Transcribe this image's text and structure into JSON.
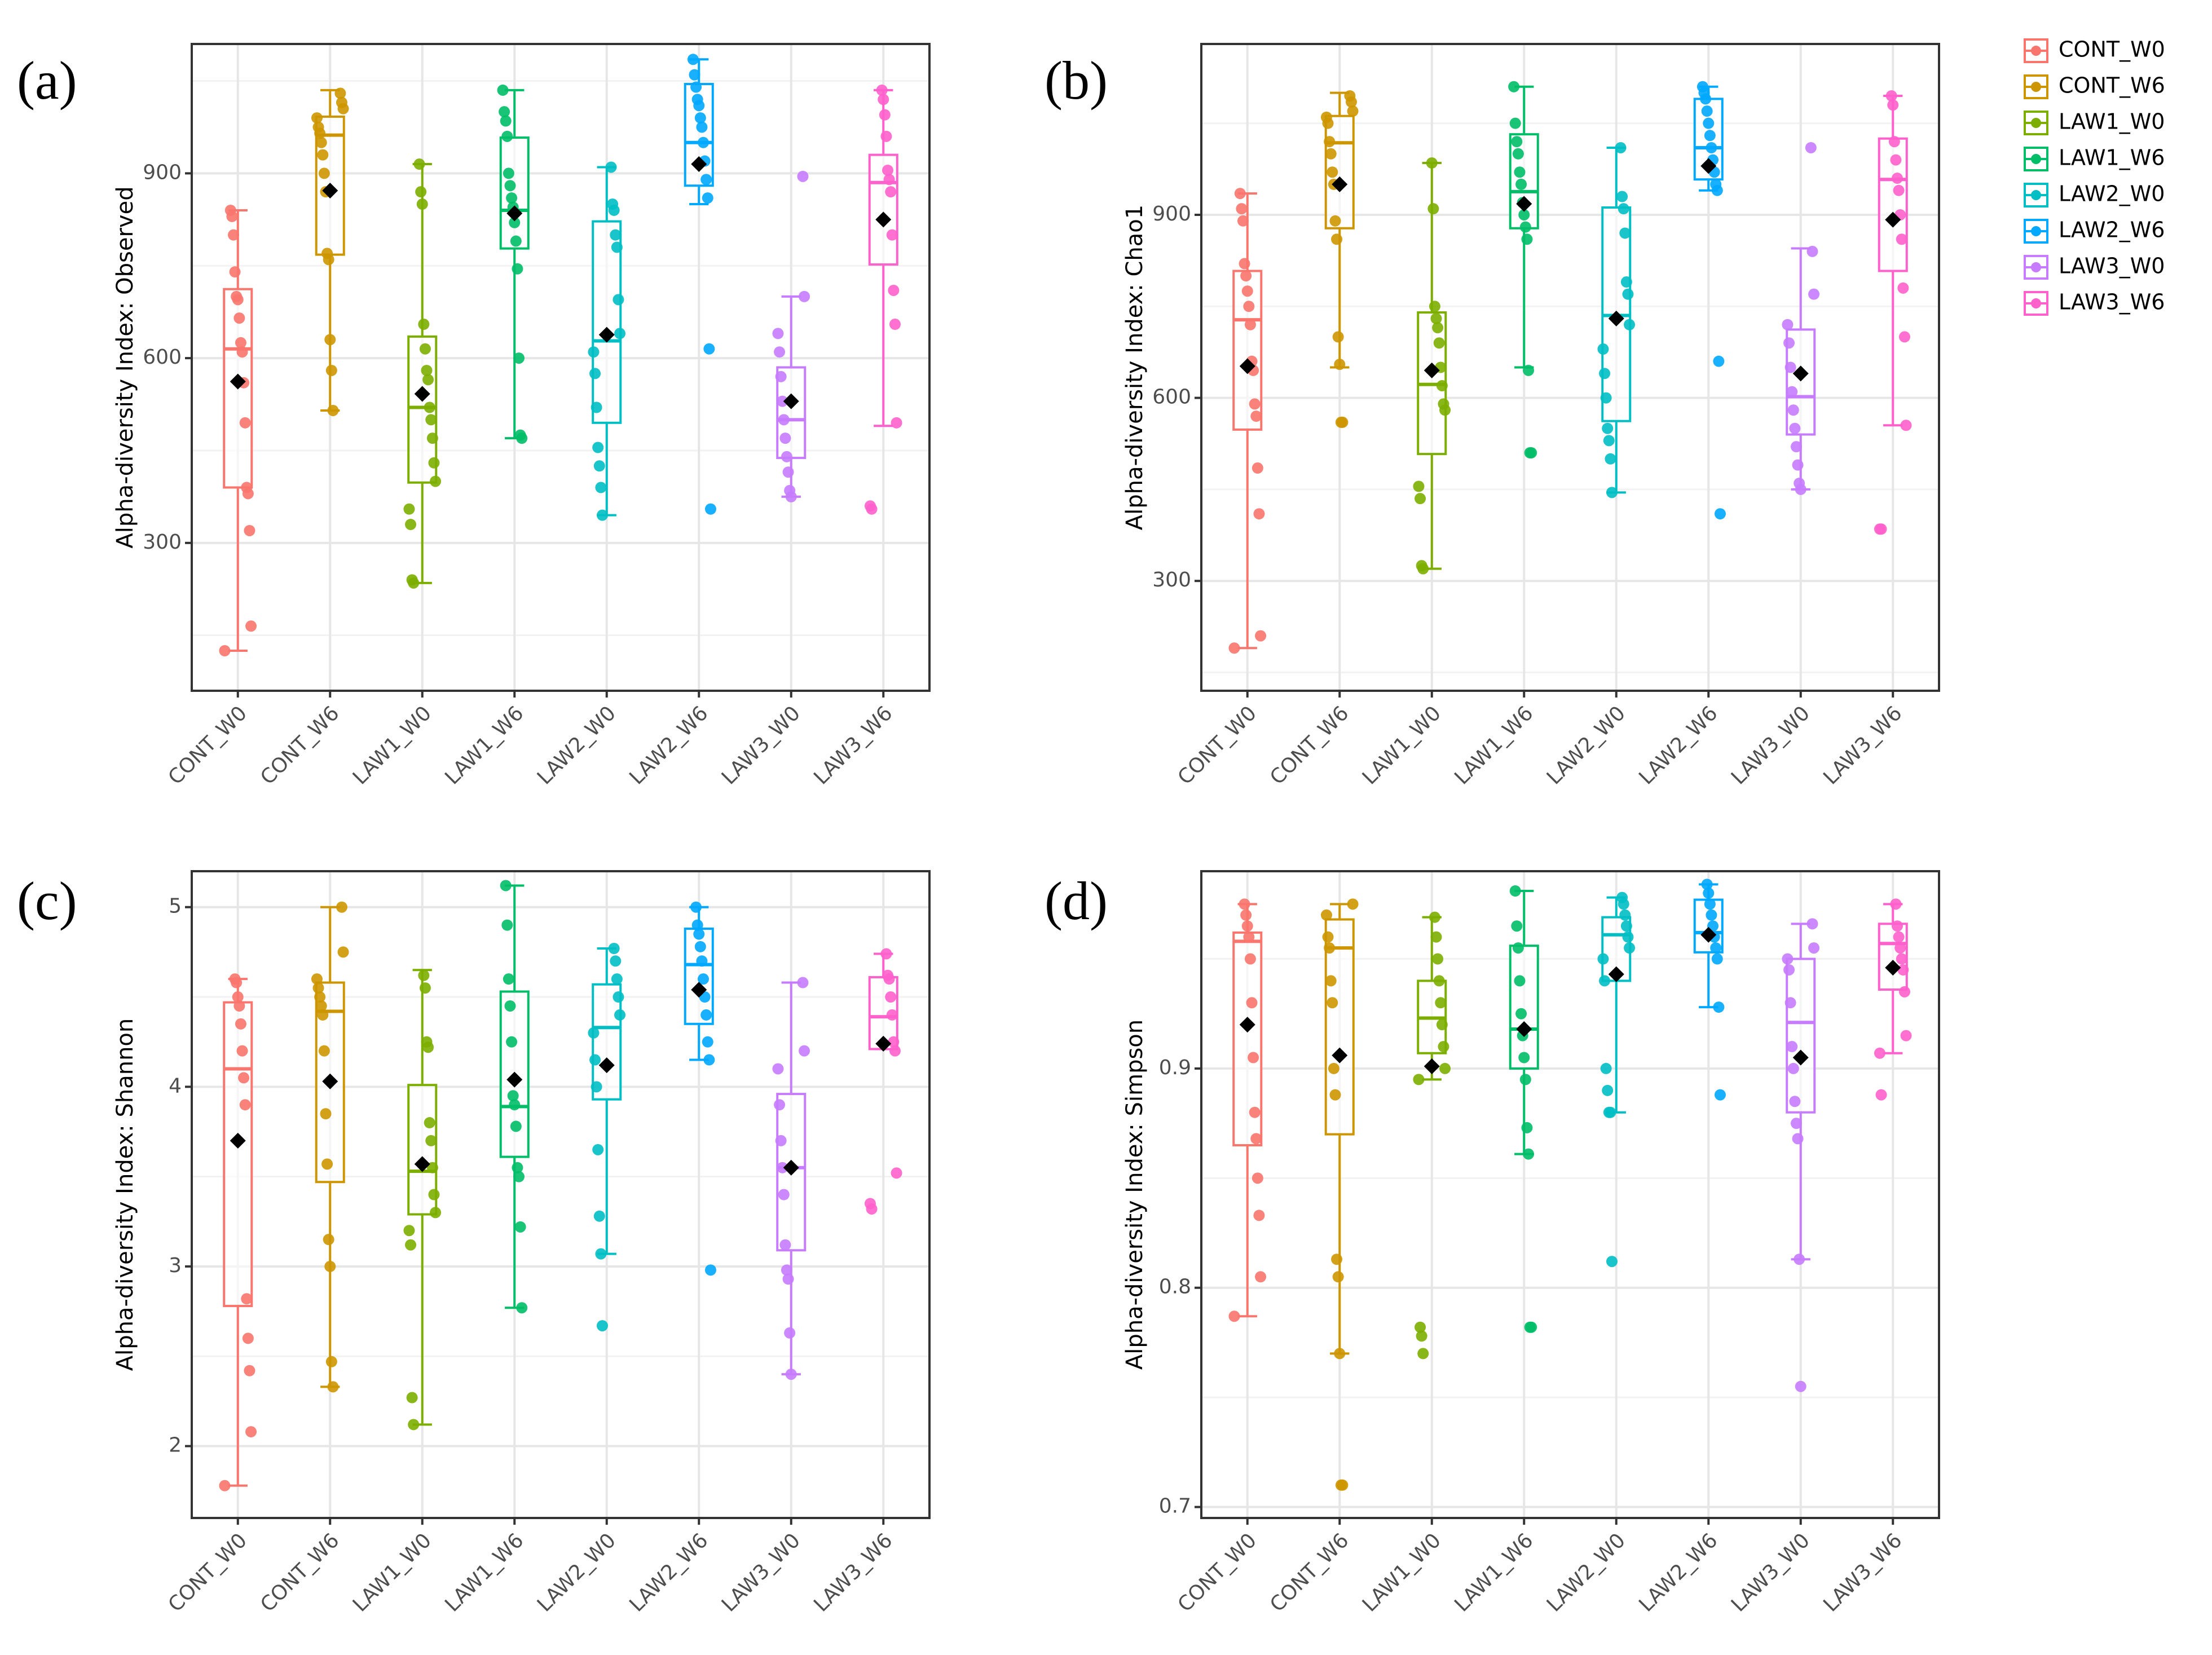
{
  "legend": {
    "position": "right",
    "entries": [
      {
        "label": "CONT_W0",
        "color": "#F8766D"
      },
      {
        "label": "CONT_W6",
        "color": "#CD9600"
      },
      {
        "label": "LAW1_W0",
        "color": "#7CAE00"
      },
      {
        "label": "LAW1_W6",
        "color": "#00BE67"
      },
      {
        "label": "LAW2_W0",
        "color": "#00BFC4"
      },
      {
        "label": "LAW2_W6",
        "color": "#00A9FF"
      },
      {
        "label": "LAW3_W0",
        "color": "#C77CFF"
      },
      {
        "label": "LAW3_W6",
        "color": "#FF61CC"
      }
    ]
  },
  "chart_data": [
    {
      "panel": "(a)",
      "type": "boxplot",
      "ylabel": "Alpha-diversity Index: Observed",
      "ylim": [
        60,
        1110
      ],
      "yticks": [
        300,
        600,
        900
      ],
      "ytick_labels": [
        "300",
        "600",
        "900"
      ],
      "yminor": [
        150,
        450,
        750,
        1050
      ],
      "categories": [
        "CONT_W0",
        "CONT_W6",
        "LAW1_W0",
        "LAW1_W6",
        "LAW2_W0",
        "LAW2_W6",
        "LAW3_W0",
        "LAW3_W6"
      ],
      "boxes": [
        {
          "lo": 125,
          "q1": 390,
          "median": 615,
          "q3": 712,
          "hi": 840,
          "mean": 562
        },
        {
          "lo": 515,
          "q1": 768,
          "median": 962,
          "q3": 992,
          "hi": 1035,
          "mean": 872
        },
        {
          "lo": 235,
          "q1": 398,
          "median": 520,
          "q3": 635,
          "hi": 915,
          "mean": 542
        },
        {
          "lo": 470,
          "q1": 778,
          "median": 840,
          "q3": 958,
          "hi": 1035,
          "mean": 835
        },
        {
          "lo": 345,
          "q1": 495,
          "median": 628,
          "q3": 822,
          "hi": 910,
          "mean": 638
        },
        {
          "lo": 850,
          "q1": 880,
          "median": 950,
          "q3": 1045,
          "hi": 1085,
          "mean": 915
        },
        {
          "lo": 375,
          "q1": 438,
          "median": 500,
          "q3": 585,
          "hi": 700,
          "mean": 530
        },
        {
          "lo": 490,
          "q1": 752,
          "median": 885,
          "q3": 930,
          "hi": 1035,
          "mean": 825
        }
      ],
      "points": [
        [
          125,
          165,
          320,
          380,
          390,
          495,
          560,
          610,
          625,
          665,
          695,
          700,
          740,
          800,
          830,
          840
        ],
        [
          515,
          580,
          630,
          760,
          770,
          870,
          900,
          930,
          950,
          965,
          975,
          990,
          1005,
          1015,
          1030
        ],
        [
          235,
          240,
          330,
          355,
          400,
          430,
          470,
          500,
          520,
          565,
          580,
          615,
          655,
          850,
          870,
          915
        ],
        [
          470,
          475,
          600,
          745,
          790,
          820,
          845,
          860,
          880,
          900,
          960,
          985,
          1000,
          1035
        ],
        [
          345,
          390,
          425,
          455,
          520,
          575,
          610,
          640,
          695,
          780,
          800,
          840,
          850,
          910
        ],
        [
          355,
          615,
          860,
          890,
          920,
          950,
          975,
          990,
          1010,
          1020,
          1040,
          1060,
          1085
        ],
        [
          375,
          385,
          415,
          440,
          470,
          500,
          530,
          570,
          610,
          640,
          700,
          895
        ],
        [
          355,
          360,
          495,
          655,
          710,
          800,
          870,
          890,
          905,
          960,
          995,
          1020,
          1035
        ]
      ]
    },
    {
      "panel": "(b)",
      "type": "boxplot",
      "ylabel": "Alpha-diversity Index: Chao1",
      "ylim": [
        120,
        1180
      ],
      "yticks": [
        300,
        600,
        900
      ],
      "ytick_labels": [
        "300",
        "600",
        "900"
      ],
      "yminor": [
        150,
        450,
        750,
        1050
      ],
      "categories": [
        "CONT_W0",
        "CONT_W6",
        "LAW1_W0",
        "LAW1_W6",
        "LAW2_W0",
        "LAW2_W6",
        "LAW3_W0",
        "LAW3_W6"
      ],
      "boxes": [
        {
          "lo": 190,
          "q1": 548,
          "median": 728,
          "q3": 808,
          "hi": 935,
          "mean": 652
        },
        {
          "lo": 650,
          "q1": 878,
          "median": 1018,
          "q3": 1062,
          "hi": 1100,
          "mean": 950
        },
        {
          "lo": 320,
          "q1": 508,
          "median": 622,
          "q3": 740,
          "hi": 985,
          "mean": 645
        },
        {
          "lo": 650,
          "q1": 878,
          "median": 938,
          "q3": 1032,
          "hi": 1110,
          "mean": 918
        },
        {
          "lo": 445,
          "q1": 562,
          "median": 735,
          "q3": 912,
          "hi": 1010,
          "mean": 730
        },
        {
          "lo": 940,
          "q1": 958,
          "median": 1010,
          "q3": 1090,
          "hi": 1110,
          "mean": 980
        },
        {
          "lo": 450,
          "q1": 540,
          "median": 602,
          "q3": 712,
          "hi": 845,
          "mean": 640
        },
        {
          "lo": 555,
          "q1": 808,
          "median": 958,
          "q3": 1025,
          "hi": 1095,
          "mean": 892
        }
      ],
      "points": [
        [
          190,
          210,
          410,
          485,
          570,
          590,
          645,
          660,
          720,
          750,
          775,
          800,
          820,
          890,
          910,
          935
        ],
        [
          560,
          560,
          655,
          700,
          860,
          890,
          950,
          970,
          1000,
          1020,
          1050,
          1060,
          1070,
          1085,
          1095
        ],
        [
          320,
          325,
          435,
          455,
          580,
          590,
          620,
          650,
          690,
          715,
          730,
          750,
          910,
          985
        ],
        [
          510,
          510,
          645,
          860,
          880,
          900,
          920,
          950,
          970,
          1000,
          1020,
          1050,
          1110
        ],
        [
          445,
          500,
          530,
          550,
          600,
          640,
          680,
          720,
          770,
          790,
          870,
          910,
          930,
          1010
        ],
        [
          410,
          660,
          940,
          950,
          970,
          990,
          1010,
          1030,
          1050,
          1070,
          1090,
          1100,
          1110
        ],
        [
          450,
          460,
          490,
          520,
          550,
          580,
          610,
          650,
          690,
          720,
          770,
          840,
          1010
        ],
        [
          385,
          385,
          555,
          700,
          780,
          860,
          900,
          940,
          960,
          990,
          1020,
          1080,
          1095
        ]
      ]
    },
    {
      "panel": "(c)",
      "type": "boxplot",
      "ylabel": "Alpha-diversity Index: Shannon",
      "ylim": [
        1.6,
        5.2
      ],
      "yticks": [
        2,
        3,
        4,
        5
      ],
      "ytick_labels": [
        "2",
        "3",
        "4",
        "5"
      ],
      "yminor": [
        2.5,
        3.5,
        4.5
      ],
      "categories": [
        "CONT_W0",
        "CONT_W6",
        "LAW1_W0",
        "LAW1_W6",
        "LAW2_W0",
        "LAW2_W6",
        "LAW3_W0",
        "LAW3_W6"
      ],
      "boxes": [
        {
          "lo": 1.78,
          "q1": 2.78,
          "median": 4.1,
          "q3": 4.47,
          "hi": 4.6,
          "mean": 3.7
        },
        {
          "lo": 2.33,
          "q1": 3.47,
          "median": 4.42,
          "q3": 4.58,
          "hi": 5.0,
          "mean": 4.03
        },
        {
          "lo": 2.12,
          "q1": 3.29,
          "median": 3.53,
          "q3": 4.01,
          "hi": 4.65,
          "mean": 3.57
        },
        {
          "lo": 2.77,
          "q1": 3.61,
          "median": 3.89,
          "q3": 4.53,
          "hi": 5.12,
          "mean": 4.04
        },
        {
          "lo": 3.07,
          "q1": 3.93,
          "median": 4.33,
          "q3": 4.57,
          "hi": 4.77,
          "mean": 4.12
        },
        {
          "lo": 4.15,
          "q1": 4.35,
          "median": 4.68,
          "q3": 4.88,
          "hi": 5.0,
          "mean": 4.54
        },
        {
          "lo": 2.4,
          "q1": 3.09,
          "median": 3.55,
          "q3": 3.96,
          "hi": 4.58,
          "mean": 3.55
        },
        {
          "lo": 4.21,
          "q1": 4.21,
          "median": 4.39,
          "q3": 4.61,
          "hi": 4.74,
          "mean": 4.24
        }
      ],
      "points": [
        [
          1.78,
          2.08,
          2.42,
          2.6,
          2.82,
          3.9,
          4.05,
          4.2,
          4.35,
          4.45,
          4.5,
          4.58,
          4.6
        ],
        [
          2.33,
          2.47,
          3.0,
          3.15,
          3.57,
          3.85,
          4.2,
          4.4,
          4.45,
          4.5,
          4.55,
          4.6,
          4.75,
          5.0
        ],
        [
          2.12,
          2.27,
          3.12,
          3.2,
          3.3,
          3.4,
          3.55,
          3.7,
          3.8,
          4.22,
          4.25,
          4.55,
          4.62
        ],
        [
          2.77,
          3.22,
          3.5,
          3.55,
          3.78,
          3.9,
          3.95,
          4.25,
          4.45,
          4.6,
          4.9,
          5.12
        ],
        [
          2.67,
          3.07,
          3.28,
          3.65,
          4.0,
          4.15,
          4.3,
          4.4,
          4.5,
          4.6,
          4.7,
          4.77
        ],
        [
          2.98,
          4.15,
          4.25,
          4.4,
          4.5,
          4.6,
          4.7,
          4.78,
          4.85,
          4.9,
          5.0
        ],
        [
          2.4,
          2.63,
          2.93,
          2.98,
          3.12,
          3.4,
          3.55,
          3.7,
          3.9,
          4.1,
          4.2,
          4.58
        ],
        [
          3.32,
          3.35,
          3.52,
          4.2,
          4.25,
          4.4,
          4.5,
          4.6,
          4.62,
          4.74
        ]
      ]
    },
    {
      "panel": "(d)",
      "type": "boxplot",
      "ylabel": "Alpha-diversity Index: Simpson",
      "ylim": [
        0.695,
        0.99
      ],
      "yticks": [
        0.7,
        0.8,
        0.9
      ],
      "ytick_labels": [
        "0.7",
        "0.8",
        "0.9"
      ],
      "yminor": [
        0.75,
        0.85,
        0.95
      ],
      "categories": [
        "CONT_W0",
        "CONT_W6",
        "LAW1_W0",
        "LAW1_W6",
        "LAW2_W0",
        "LAW2_W6",
        "LAW3_W0",
        "LAW3_W6"
      ],
      "boxes": [
        {
          "lo": 0.787,
          "q1": 0.865,
          "median": 0.958,
          "q3": 0.962,
          "hi": 0.975,
          "mean": 0.92
        },
        {
          "lo": 0.77,
          "q1": 0.87,
          "median": 0.955,
          "q3": 0.968,
          "hi": 0.975,
          "mean": 0.906
        },
        {
          "lo": 0.895,
          "q1": 0.907,
          "median": 0.923,
          "q3": 0.94,
          "hi": 0.969,
          "mean": 0.901
        },
        {
          "lo": 0.861,
          "q1": 0.9,
          "median": 0.918,
          "q3": 0.956,
          "hi": 0.981,
          "mean": 0.918
        },
        {
          "lo": 0.88,
          "q1": 0.94,
          "median": 0.961,
          "q3": 0.969,
          "hi": 0.978,
          "mean": 0.943
        },
        {
          "lo": 0.928,
          "q1": 0.953,
          "median": 0.962,
          "q3": 0.977,
          "hi": 0.984,
          "mean": 0.961
        },
        {
          "lo": 0.813,
          "q1": 0.88,
          "median": 0.921,
          "q3": 0.95,
          "hi": 0.966,
          "mean": 0.905
        },
        {
          "lo": 0.907,
          "q1": 0.936,
          "median": 0.957,
          "q3": 0.966,
          "hi": 0.975,
          "mean": 0.946
        }
      ],
      "points": [
        [
          0.787,
          0.805,
          0.833,
          0.85,
          0.868,
          0.88,
          0.905,
          0.93,
          0.95,
          0.96,
          0.965,
          0.97,
          0.975
        ],
        [
          0.71,
          0.71,
          0.77,
          0.805,
          0.813,
          0.888,
          0.9,
          0.93,
          0.94,
          0.955,
          0.96,
          0.97,
          0.975
        ],
        [
          0.77,
          0.778,
          0.782,
          0.895,
          0.9,
          0.91,
          0.92,
          0.93,
          0.94,
          0.95,
          0.96,
          0.969
        ],
        [
          0.782,
          0.782,
          0.861,
          0.873,
          0.895,
          0.905,
          0.915,
          0.925,
          0.94,
          0.955,
          0.965,
          0.981
        ],
        [
          0.812,
          0.88,
          0.88,
          0.89,
          0.9,
          0.94,
          0.95,
          0.955,
          0.96,
          0.965,
          0.97,
          0.975,
          0.978
        ],
        [
          0.888,
          0.928,
          0.95,
          0.955,
          0.96,
          0.965,
          0.97,
          0.975,
          0.98,
          0.984
        ],
        [
          0.755,
          0.813,
          0.868,
          0.875,
          0.885,
          0.9,
          0.91,
          0.93,
          0.945,
          0.95,
          0.955,
          0.966
        ],
        [
          0.888,
          0.907,
          0.915,
          0.935,
          0.945,
          0.95,
          0.955,
          0.96,
          0.965,
          0.975
        ]
      ]
    }
  ]
}
